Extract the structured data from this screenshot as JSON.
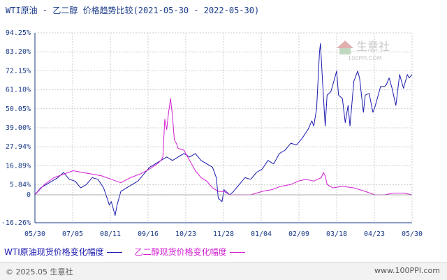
{
  "title": "WTI原油 - 乙二醇 价格趋势比较(2021-05-30 - 2022-05-30)",
  "watermark": {
    "brand": "生意社",
    "url": "100PPI.COM"
  },
  "footer": {
    "copyright": "© 2025.05 生意社",
    "site": "www.100PPI.com"
  },
  "colors": {
    "wti": "#1a1ab0",
    "meg": "#d21fd2",
    "grid": "#cccccc",
    "axis": "#1a3a8a"
  },
  "chart_data": {
    "type": "line",
    "ylim": [
      -16.26,
      94.25
    ],
    "y_ticks": [
      "94.25%",
      "83.20%",
      "72.15%",
      "61.10%",
      "50.05%",
      "39.00%",
      "27.94%",
      "16.89%",
      "5.84%",
      "0",
      "-16.26%"
    ],
    "y_tick_values": [
      94.25,
      83.2,
      72.15,
      61.1,
      50.05,
      39.0,
      27.94,
      16.89,
      5.84,
      0,
      -16.26
    ],
    "categories": [
      "05/30",
      "07/05",
      "08/11",
      "09/16",
      "10/23",
      "11/28",
      "01/04",
      "02/09",
      "03/18",
      "04/23",
      "05/30"
    ],
    "series": [
      {
        "name": "WTI原油现货价格变化幅度",
        "color": "#1a1ab0",
        "values": [
          [
            0,
            0
          ],
          [
            6,
            4
          ],
          [
            12,
            6
          ],
          [
            18,
            8
          ],
          [
            24,
            10
          ],
          [
            30,
            13
          ],
          [
            36,
            9
          ],
          [
            42,
            8
          ],
          [
            48,
            4
          ],
          [
            54,
            6
          ],
          [
            60,
            10
          ],
          [
            66,
            9
          ],
          [
            72,
            4
          ],
          [
            78,
            -6
          ],
          [
            80,
            -4
          ],
          [
            84,
            -12
          ],
          [
            86,
            -6
          ],
          [
            90,
            2
          ],
          [
            96,
            4
          ],
          [
            102,
            6
          ],
          [
            108,
            8
          ],
          [
            114,
            12
          ],
          [
            120,
            16
          ],
          [
            126,
            18
          ],
          [
            132,
            20
          ],
          [
            138,
            22
          ],
          [
            144,
            20
          ],
          [
            150,
            22
          ],
          [
            156,
            24
          ],
          [
            162,
            22
          ],
          [
            168,
            24
          ],
          [
            174,
            20
          ],
          [
            180,
            18
          ],
          [
            186,
            16
          ],
          [
            190,
            10
          ],
          [
            192,
            -2
          ],
          [
            196,
            -4
          ],
          [
            198,
            3
          ],
          [
            204,
            0
          ],
          [
            208,
            2
          ],
          [
            214,
            6
          ],
          [
            220,
            10
          ],
          [
            226,
            9
          ],
          [
            232,
            13
          ],
          [
            238,
            15
          ],
          [
            244,
            20
          ],
          [
            250,
            18
          ],
          [
            256,
            24
          ],
          [
            262,
            26
          ],
          [
            268,
            30
          ],
          [
            274,
            29
          ],
          [
            280,
            33
          ],
          [
            286,
            38
          ],
          [
            290,
            43
          ],
          [
            292,
            40
          ],
          [
            295,
            50
          ],
          [
            298,
            83
          ],
          [
            299,
            88
          ],
          [
            301,
            68
          ],
          [
            304,
            40
          ],
          [
            306,
            58
          ],
          [
            310,
            60
          ],
          [
            314,
            68
          ],
          [
            316,
            72
          ],
          [
            318,
            58
          ],
          [
            322,
            56
          ],
          [
            325,
            42
          ],
          [
            328,
            52
          ],
          [
            330,
            40
          ],
          [
            334,
            66
          ],
          [
            338,
            72
          ],
          [
            340,
            68
          ],
          [
            344,
            48
          ],
          [
            346,
            58
          ],
          [
            350,
            59
          ],
          [
            354,
            48
          ],
          [
            356,
            51
          ],
          [
            360,
            59
          ],
          [
            362,
            63
          ],
          [
            366,
            63
          ],
          [
            368,
            64
          ],
          [
            371,
            68
          ],
          [
            374,
            62
          ],
          [
            378,
            52
          ],
          [
            382,
            70
          ],
          [
            386,
            62
          ],
          [
            390,
            70
          ],
          [
            392,
            68
          ],
          [
            395,
            70
          ]
        ]
      },
      {
        "name": "乙二醇现货价格变化幅度",
        "color": "#d21fd2",
        "values": [
          [
            0,
            0
          ],
          [
            10,
            6
          ],
          [
            20,
            10
          ],
          [
            30,
            12
          ],
          [
            40,
            14
          ],
          [
            50,
            13
          ],
          [
            60,
            12
          ],
          [
            70,
            11
          ],
          [
            80,
            9
          ],
          [
            90,
            7
          ],
          [
            100,
            10
          ],
          [
            110,
            12
          ],
          [
            120,
            15
          ],
          [
            128,
            18
          ],
          [
            132,
            20
          ],
          [
            134,
            22
          ],
          [
            136,
            44
          ],
          [
            138,
            38
          ],
          [
            140,
            48
          ],
          [
            142,
            56
          ],
          [
            144,
            46
          ],
          [
            146,
            32
          ],
          [
            148,
            30
          ],
          [
            150,
            27
          ],
          [
            156,
            26
          ],
          [
            162,
            20
          ],
          [
            168,
            14
          ],
          [
            174,
            10
          ],
          [
            180,
            8
          ],
          [
            186,
            4
          ],
          [
            192,
            2
          ],
          [
            198,
            2
          ],
          [
            204,
            0
          ],
          [
            214,
            0
          ],
          [
            226,
            0
          ],
          [
            238,
            2
          ],
          [
            248,
            3
          ],
          [
            258,
            5
          ],
          [
            268,
            6
          ],
          [
            276,
            8
          ],
          [
            284,
            9
          ],
          [
            292,
            8
          ],
          [
            300,
            10
          ],
          [
            302,
            13
          ],
          [
            304,
            11
          ],
          [
            306,
            6
          ],
          [
            312,
            4
          ],
          [
            322,
            5
          ],
          [
            334,
            4
          ],
          [
            346,
            2
          ],
          [
            356,
            0
          ],
          [
            366,
            0
          ],
          [
            376,
            1
          ],
          [
            386,
            1
          ],
          [
            395,
            0
          ]
        ]
      }
    ]
  }
}
